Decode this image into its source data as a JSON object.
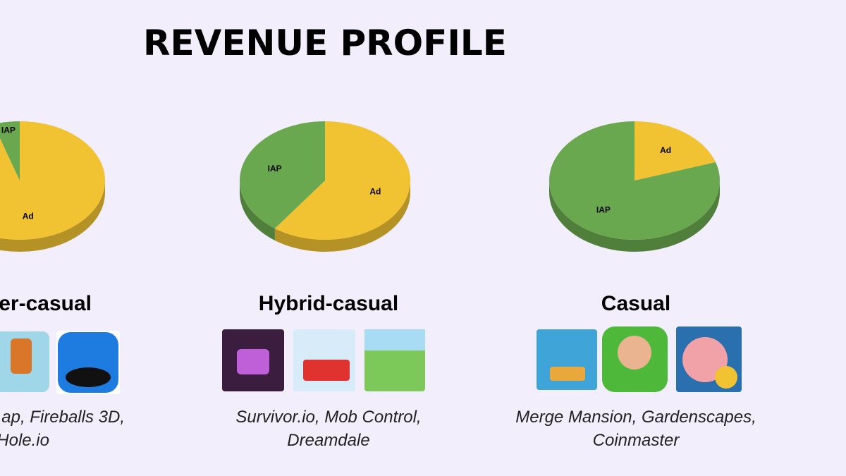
{
  "title": "REVENUE PROFILE",
  "chart_data": [
    {
      "type": "pie",
      "title": "er-casual",
      "categories": [
        "Ad",
        "IAP"
      ],
      "values": [
        95,
        5
      ],
      "colors": [
        "#f1c232",
        "#6aa84f"
      ],
      "caption": [
        "ap, Fireballs 3D,",
        "Hole.io"
      ]
    },
    {
      "type": "pie",
      "title": "Hybrid-casual",
      "categories": [
        "Ad",
        "IAP"
      ],
      "values": [
        60,
        40
      ],
      "colors": [
        "#f1c232",
        "#6aa84f"
      ],
      "caption": [
        "Survivor.io, Mob Control,",
        "Dreamdale"
      ]
    },
    {
      "type": "pie",
      "title": "Casual",
      "categories": [
        "Ad",
        "IAP"
      ],
      "values": [
        20,
        80
      ],
      "colors": [
        "#f1c232",
        "#6aa84f"
      ],
      "caption": [
        "Merge Mansion, Gardenscapes,",
        "Coinmaster"
      ]
    }
  ]
}
